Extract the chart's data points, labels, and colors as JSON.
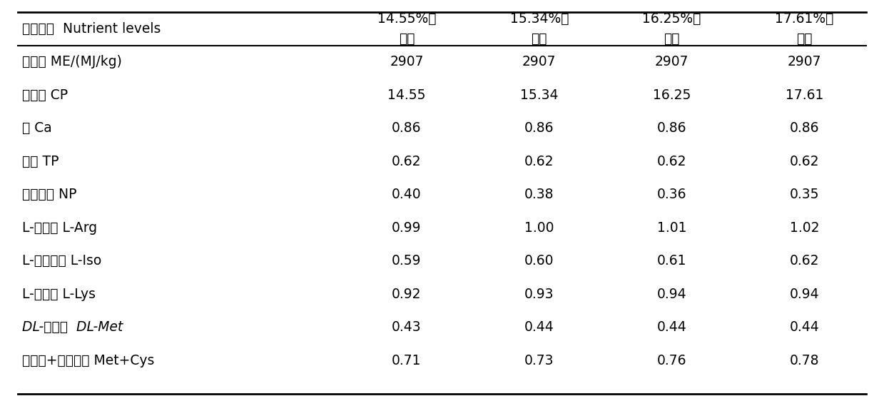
{
  "header_col": [
    "营养水平  Nutrient levels",
    "代谢能 ME/(MJ/kg)",
    "粗蛋白 CP",
    "钙 Ca",
    "总磷 TP",
    "非植酸磷 NP",
    "L-精氨酸 L-Arg",
    "L-异亮氨酸 L-Iso",
    "L-赖氨酸 L-Lys",
    "DL-蛋氨酸 DL-Met",
    "蛋氨酸+半胱氨酸 Met+Cys"
  ],
  "col_headers_line1": [
    "14.55%的",
    "15.34%的",
    "16.25%的",
    "17.61%的"
  ],
  "col_headers_line2": [
    "日粮",
    "日粮",
    "日粮",
    "日粮"
  ],
  "dl_row_index": 9,
  "data": [
    [
      "2907",
      "2907",
      "2907",
      "2907"
    ],
    [
      "14.55",
      "15.34",
      "16.25",
      "17.61"
    ],
    [
      "0.86",
      "0.86",
      "0.86",
      "0.86"
    ],
    [
      "0.62",
      "0.62",
      "0.62",
      "0.62"
    ],
    [
      "0.40",
      "0.38",
      "0.36",
      "0.35"
    ],
    [
      "0.99",
      "1.00",
      "1.01",
      "1.02"
    ],
    [
      "0.59",
      "0.60",
      "0.61",
      "0.62"
    ],
    [
      "0.92",
      "0.93",
      "0.94",
      "0.94"
    ],
    [
      "0.43",
      "0.44",
      "0.44",
      "0.44"
    ],
    [
      "0.71",
      "0.73",
      "0.76",
      "0.78"
    ]
  ],
  "bg_color": "#ffffff",
  "text_color": "#000000",
  "line_color": "#000000",
  "font_size": 13.5,
  "header_font_size": 13.5
}
